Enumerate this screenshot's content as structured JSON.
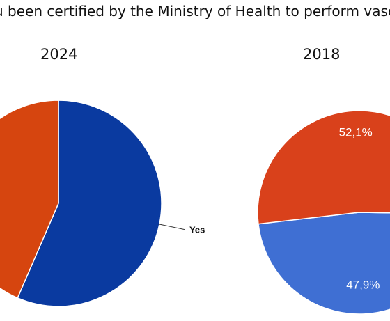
{
  "title": "u been certified by the Ministry of Health to perform vasc",
  "chart_data": [
    {
      "type": "pie",
      "title": "2024",
      "slices": [
        {
          "label": "Yes",
          "value": 56.5,
          "color": "#0a3aa0"
        },
        {
          "label": "",
          "value": 43.5,
          "color": "#d6450f"
        }
      ]
    },
    {
      "type": "pie",
      "title": "2018",
      "slices": [
        {
          "label": "47,9%",
          "value": 47.9,
          "color": "#3f6fd3"
        },
        {
          "label": "52,1%",
          "value": 52.1,
          "color": "#d9411b"
        }
      ]
    }
  ]
}
